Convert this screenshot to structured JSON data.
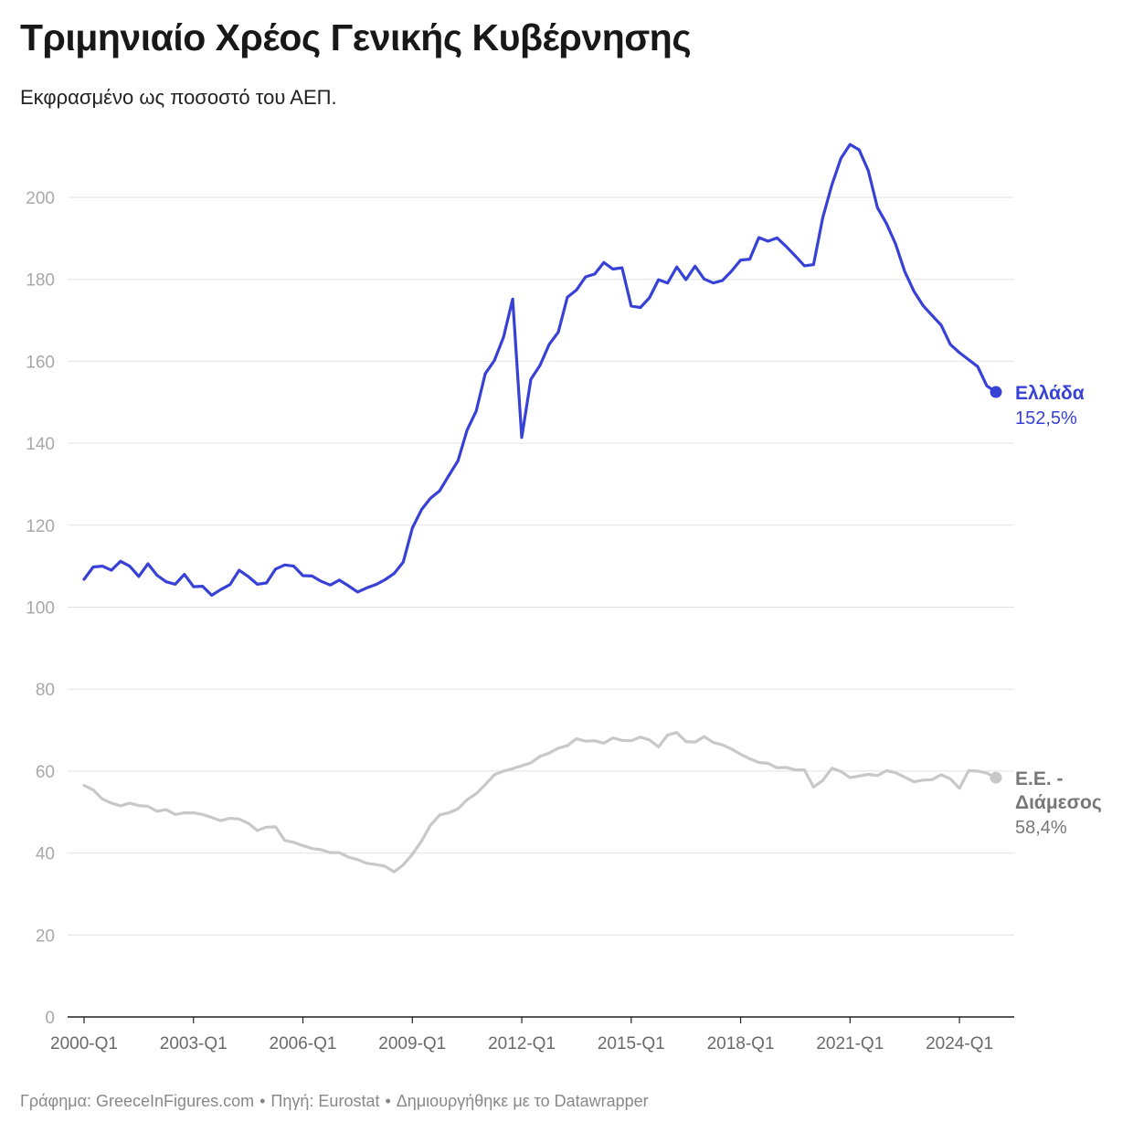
{
  "title": "Τριμηνιαίο Χρέος Γενικής Κυβέρνησης",
  "subtitle": "Εκφρασμένο ως ποσοστό του ΑΕΠ.",
  "footer": {
    "chart_by": "Γράφημα: GreeceInFigures.com",
    "source": "Πηγή: Eurostat",
    "made_with": "Δημιουργήθηκε με το Datawrapper",
    "separator": "•"
  },
  "colors": {
    "greece": "#3841d6",
    "eu": "#c8c8c8",
    "eu_label": "#777777",
    "grid": "#e2e2e2"
  },
  "chart_data": {
    "type": "line",
    "title": "Τριμηνιαίο Χρέος Γενικής Κυβέρνησης",
    "subtitle": "Εκφρασμένο ως ποσοστό του ΑΕΠ.",
    "xlabel": "",
    "ylabel": "",
    "x_start": "2000-Q1",
    "x_end": "2025-Q1",
    "x_ticks": [
      "2000-Q1",
      "2003-Q1",
      "2006-Q1",
      "2009-Q1",
      "2012-Q1",
      "2015-Q1",
      "2018-Q1",
      "2021-Q1",
      "2024-Q1"
    ],
    "ylim": [
      0,
      215
    ],
    "y_ticks": [
      0,
      20,
      40,
      60,
      80,
      100,
      120,
      140,
      160,
      180,
      200
    ],
    "grid": true,
    "legend": "direct labels at line ends (right)",
    "series": [
      {
        "name": "Ελλάδα",
        "end_label": "152,5%",
        "color": "#3841d6",
        "values": [
          106.8,
          109.8,
          110.0,
          109.0,
          111.2,
          110.0,
          107.5,
          110.6,
          107.8,
          106.2,
          105.6,
          108.0,
          105.0,
          105.1,
          102.9,
          104.3,
          105.5,
          109.0,
          107.5,
          105.6,
          105.9,
          109.3,
          110.3,
          110.0,
          107.7,
          107.6,
          106.3,
          105.4,
          106.6,
          105.2,
          103.7,
          104.7,
          105.5,
          106.7,
          108.2,
          111.0,
          119.3,
          123.8,
          126.6,
          128.4,
          132.1,
          135.7,
          143.2,
          147.8,
          157.0,
          160.2,
          165.9,
          175.2,
          141.4,
          155.6,
          159.0,
          164.1,
          167.1,
          175.6,
          177.4,
          180.6,
          181.3,
          184.1,
          182.5,
          182.8,
          173.5,
          173.1,
          175.5,
          179.9,
          179.1,
          183.0,
          179.9,
          183.2,
          180.1,
          179.1,
          179.7,
          182.0,
          184.7,
          184.9,
          190.2,
          189.3,
          190.1,
          188.0,
          185.7,
          183.3,
          183.6,
          195.0,
          203.0,
          209.5,
          212.9,
          211.6,
          206.5,
          197.5,
          193.6,
          188.6,
          181.9,
          177.1,
          173.6,
          171.2,
          168.8,
          164.1,
          162.1,
          160.4,
          158.7,
          154.0,
          152.5
        ]
      },
      {
        "name": "Ε.Ε. - Διάμεσος",
        "end_label": "58,4%",
        "color": "#c8c8c8",
        "values": [
          56.5,
          55.4,
          53.2,
          52.2,
          51.5,
          52.2,
          51.6,
          51.4,
          50.2,
          50.6,
          49.4,
          49.8,
          49.8,
          49.4,
          48.7,
          47.9,
          48.5,
          48.3,
          47.3,
          45.5,
          46.3,
          46.4,
          43.1,
          42.6,
          41.8,
          41.1,
          40.8,
          40.1,
          40.1,
          39.0,
          38.4,
          37.5,
          37.2,
          36.8,
          35.4,
          37.1,
          39.7,
          42.9,
          46.8,
          49.3,
          49.8,
          50.8,
          53.0,
          54.5,
          56.7,
          59.1,
          60.0,
          60.6,
          61.3,
          62.0,
          63.6,
          64.4,
          65.6,
          66.2,
          67.9,
          67.3,
          67.4,
          66.8,
          68.1,
          67.5,
          67.4,
          68.3,
          67.6,
          65.9,
          68.8,
          69.4,
          67.2,
          67.1,
          68.4,
          67.0,
          66.4,
          65.4,
          64.1,
          63.0,
          62.1,
          61.9,
          60.8,
          60.9,
          60.3,
          60.3,
          56.1,
          57.7,
          60.7,
          59.9,
          58.4,
          58.8,
          59.2,
          58.9,
          60.1,
          59.6,
          58.5,
          57.4,
          57.8,
          57.9,
          59.1,
          58.1,
          55.8,
          60.1,
          60.0,
          59.5,
          58.4
        ]
      }
    ]
  }
}
